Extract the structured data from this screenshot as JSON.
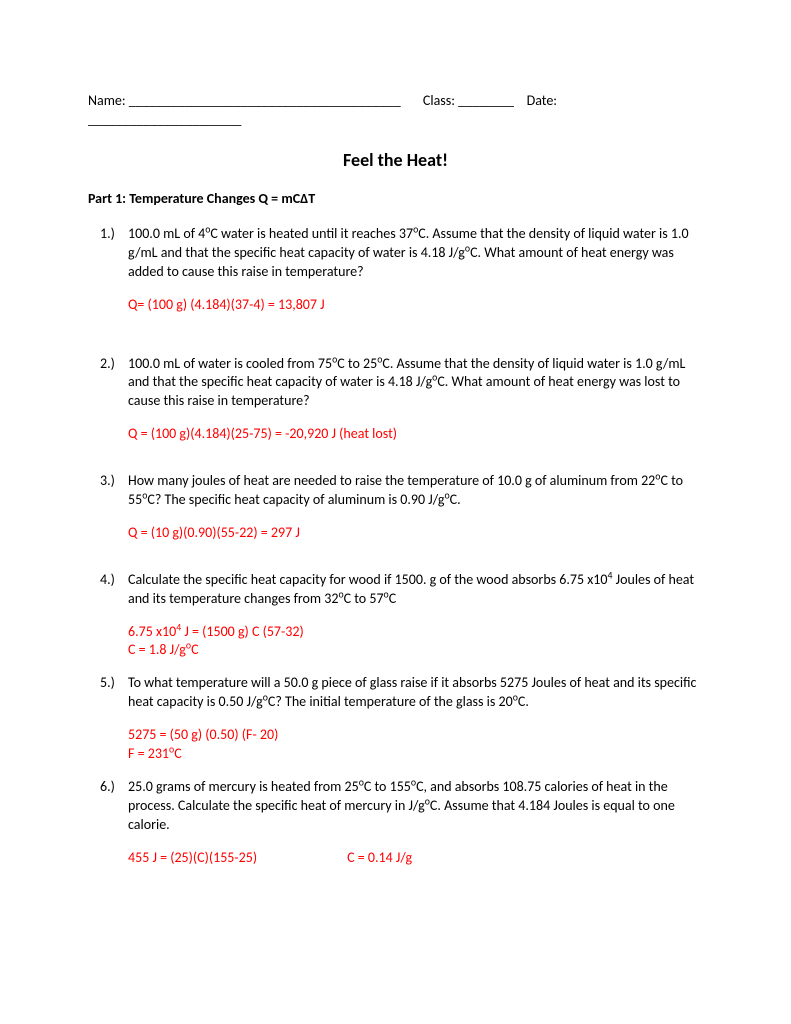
{
  "header": {
    "name_label": "Name: _______________________________________",
    "class_label": "Class: ________",
    "date_label": "Date: ______________________"
  },
  "title": "Feel the Heat!",
  "part_title": "Part 1: Temperature Changes Q = mCΔT",
  "problems": [
    {
      "num": "1.)",
      "question_html": "100.0 mL of 4<sup>o</sup>C water is heated until it reaches 37<sup>o</sup>C.  Assume that the density of liquid water is 1.0 g/mL and that the specific heat capacity of water is 4.18 J/g<sup>o</sup>C. What amount of heat energy was added to cause this raise in temperature?",
      "answer_lines": [
        "Q= (100 g) (4.184)(37-4) = 13,807 J"
      ],
      "gap_after": "gap-large"
    },
    {
      "num": "2.)",
      "question_html": "100.0 mL of water is cooled from 75<sup>o</sup>C to 25<sup>o</sup>C. Assume that the density of liquid water is 1.0 g/mL and that the specific heat capacity of water is 4.18 J/g<sup>o</sup>C. What amount of heat energy was lost to cause this raise in temperature?",
      "answer_lines": [
        "Q = (100 g)(4.184)(25-75) = -20,920 J (heat lost)"
      ],
      "gap_after": "gap-med"
    },
    {
      "num": "3.)",
      "question_html": "How many joules of heat are needed to raise the temperature of 10.0 g of aluminum from 22<sup>o</sup>C to 55<sup>o</sup>C? The specific heat capacity of aluminum is 0.90 J/g<sup>o</sup>C.",
      "answer_lines": [
        "Q = (10 g)(0.90)(55-22) = 297 J"
      ],
      "gap_after": "gap-med"
    },
    {
      "num": "4.)",
      "question_html": "Calculate the specific heat capacity for wood if 1500. g of the wood absorbs 6.75 x10<sup>4</sup> Joules of heat and its temperature changes from 32<sup>o</sup>C to 57<sup>o</sup>C",
      "answer_lines": [
        "6.75 x10<sup>4</sup> J = (1500 g) C (57-32)",
        "C = 1.8 J/g<sup>o</sup>C"
      ],
      "gap_after": ""
    },
    {
      "num": "5.)",
      "question_html": "To what temperature will a 50.0 g piece of glass raise if it absorbs 5275 Joules of heat and its specific heat capacity is 0.50 J/g<sup>o</sup>C? The initial temperature of the glass is 20<sup>o</sup>C.",
      "answer_lines": [
        "5275 = (50 g) (0.50) (F- 20)",
        "F = 231<sup>o</sup>C"
      ],
      "gap_after": ""
    },
    {
      "num": "6.)",
      "question_html": "25.0 grams of mercury is heated from 25<sup>o</sup>C  to 155<sup>o</sup>C, and absorbs  108.75 calories of heat in the process. Calculate the specific heat of mercury in J/g<sup>o</sup>C. Assume that 4.184 Joules is equal to one calorie.",
      "answer_lines": [
        "455 J = (25)(C)(155-25)<span class=\"inline-spaced\">C = 0.14 J/g</span>"
      ],
      "gap_after": ""
    }
  ],
  "colors": {
    "answer_color": "#ff0000",
    "text_color": "#000000",
    "background": "#ffffff"
  }
}
